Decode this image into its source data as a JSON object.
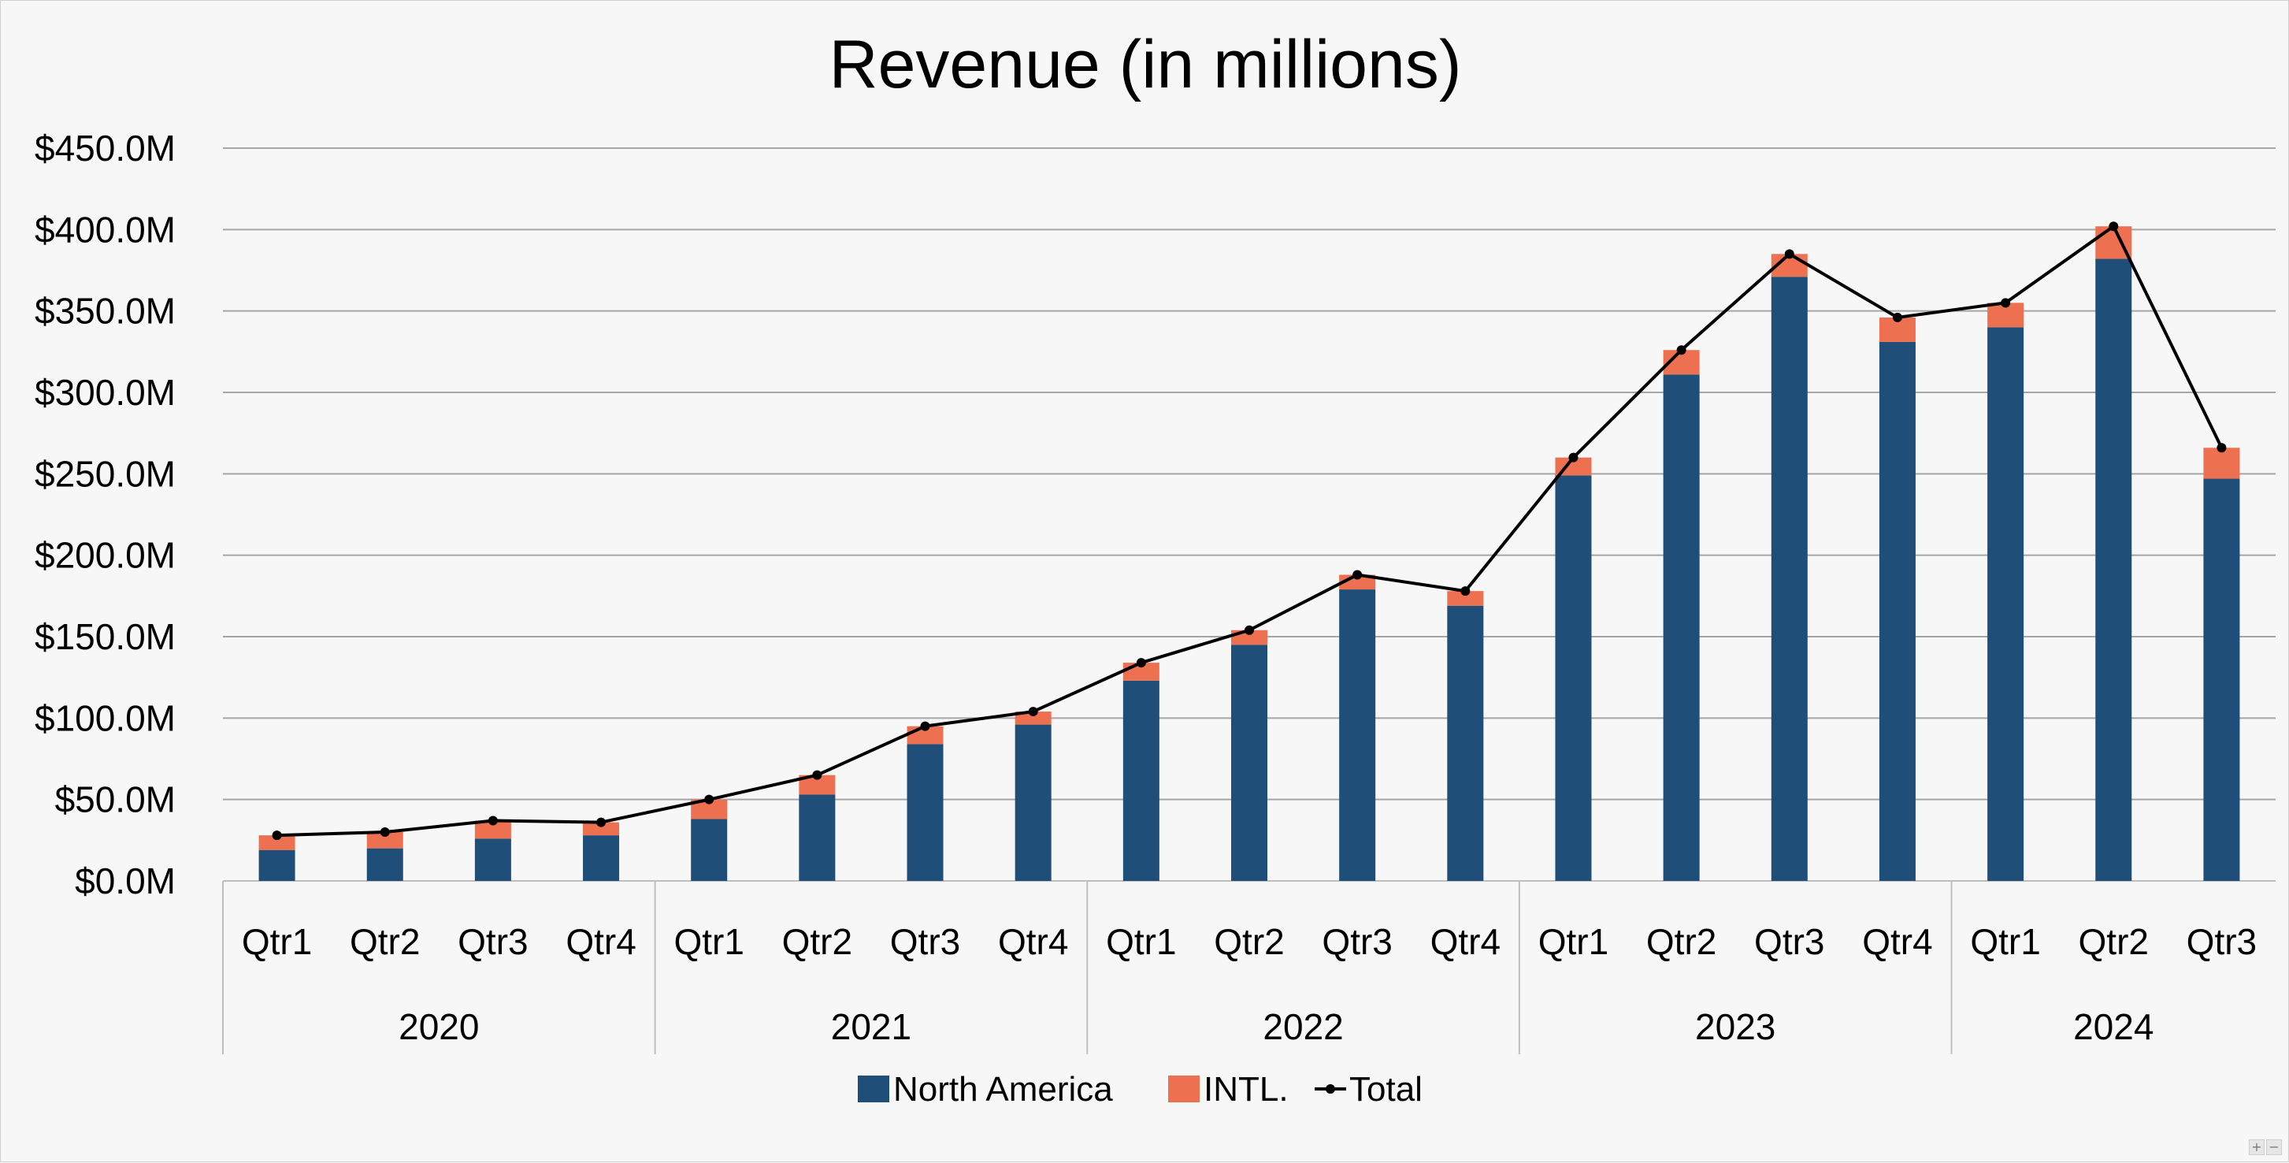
{
  "chart_data": {
    "type": "bar",
    "stacked": true,
    "title": "Revenue (in millions)",
    "xlabel": "",
    "ylabel": "",
    "ylim": [
      0,
      450
    ],
    "y_ticks": [
      0,
      50,
      100,
      150,
      200,
      250,
      300,
      350,
      400,
      450
    ],
    "y_tick_labels": [
      "$0.0M",
      "$50.0M",
      "$100.0M",
      "$150.0M",
      "$200.0M",
      "$250.0M",
      "$300.0M",
      "$350.0M",
      "$400.0M",
      "$450.0M"
    ],
    "grid": true,
    "legend_position": "bottom",
    "categories": [
      "Qtr1",
      "Qtr2",
      "Qtr3",
      "Qtr4",
      "Qtr1",
      "Qtr2",
      "Qtr3",
      "Qtr4",
      "Qtr1",
      "Qtr2",
      "Qtr3",
      "Qtr4",
      "Qtr1",
      "Qtr2",
      "Qtr3",
      "Qtr4",
      "Qtr1",
      "Qtr2",
      "Qtr3"
    ],
    "groups": [
      {
        "label": "2020",
        "count": 4
      },
      {
        "label": "2021",
        "count": 4
      },
      {
        "label": "2022",
        "count": 4
      },
      {
        "label": "2023",
        "count": 4
      },
      {
        "label": "2024",
        "count": 3
      }
    ],
    "series": [
      {
        "name": "North America",
        "kind": "bar",
        "color": "#1f4e79",
        "values": [
          19,
          20,
          26,
          28,
          38,
          53,
          84,
          96,
          123,
          145,
          179,
          169,
          249,
          311,
          371,
          331,
          340,
          382,
          247
        ]
      },
      {
        "name": "INTL.",
        "kind": "bar",
        "color": "#ed7151",
        "values": [
          9,
          10,
          11,
          8,
          12,
          12,
          11,
          8,
          11,
          9,
          9,
          9,
          11,
          15,
          14,
          15,
          15,
          20,
          19
        ]
      },
      {
        "name": "Total",
        "kind": "line",
        "color": "#000000",
        "values": [
          28,
          30,
          37,
          36,
          50,
          65,
          95,
          104,
          134,
          154,
          188,
          178,
          260,
          326,
          385,
          346,
          355,
          402,
          266
        ]
      }
    ]
  },
  "ui": {
    "zoom_in_label": "+",
    "zoom_out_label": "−"
  }
}
